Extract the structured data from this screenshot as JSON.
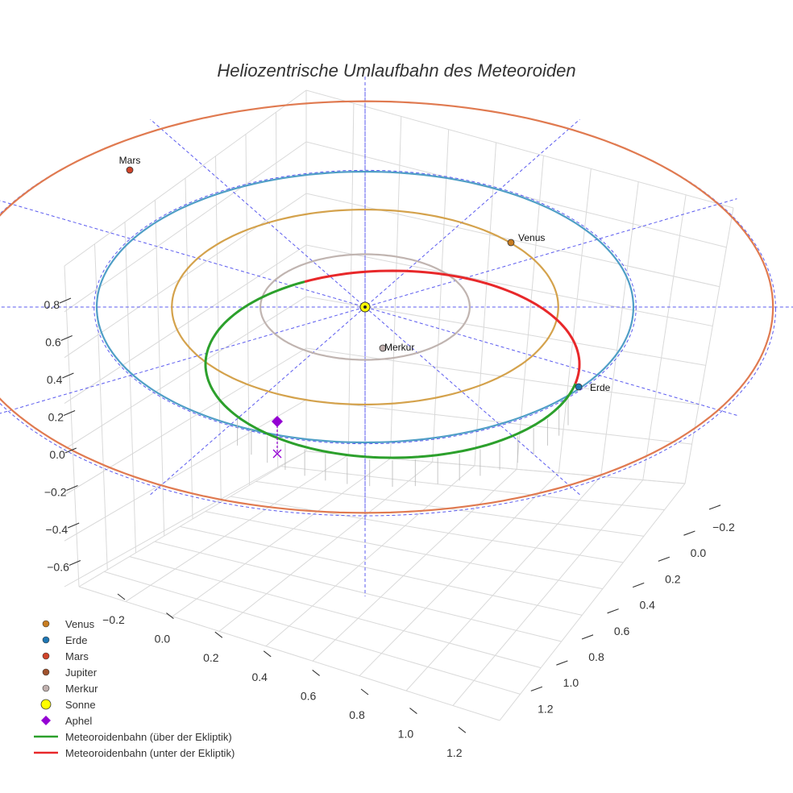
{
  "chart_data": {
    "type": "3d-orbit",
    "title": "Heliozentrische Umlaufbahn des Meteoroiden",
    "axes": {
      "x_ticks": [
        "−0.2",
        "0.0",
        "0.2",
        "0.4",
        "0.6",
        "0.8",
        "1.0",
        "1.2"
      ],
      "y_ticks": [
        "−0.2",
        "0.0",
        "0.2",
        "0.4",
        "0.6",
        "0.8",
        "1.0",
        "1.2"
      ],
      "z_ticks": [
        "0.8",
        "0.6",
        "0.4",
        "0.2",
        "0.0",
        "−0.2",
        "−0.4",
        "−0.6"
      ]
    },
    "orbits": [
      {
        "name": "Merkur",
        "radius_au": 0.39,
        "color": "#c0b4b0"
      },
      {
        "name": "Venus",
        "radius_au": 0.72,
        "color": "#d4a24c"
      },
      {
        "name": "Erde",
        "radius_au": 1.0,
        "color": "#4f9ec6"
      },
      {
        "name": "Mars",
        "radius_au": 1.52,
        "color": "#e07a50"
      }
    ],
    "planets": [
      {
        "name": "Venus",
        "label": "Venus",
        "color": "#c87d22"
      },
      {
        "name": "Erde",
        "label": "Erde",
        "color": "#1f77b4"
      },
      {
        "name": "Mars",
        "label": "Mars",
        "color": "#d0442a"
      },
      {
        "name": "Merkur",
        "label": "Merkur",
        "color": "#c0b0ae"
      }
    ],
    "sun": {
      "name": "Sonne",
      "color": "#ffff00"
    },
    "aphel": {
      "name": "Aphel",
      "color": "#9400d3"
    },
    "meteoroid": {
      "above_color": "#2ca02c",
      "below_color": "#e8282a"
    },
    "legend": [
      {
        "kind": "dot",
        "label": "Venus",
        "color": "#c87d22"
      },
      {
        "kind": "dot",
        "label": "Erde",
        "color": "#1f77b4"
      },
      {
        "kind": "dot",
        "label": "Mars",
        "color": "#d0442a"
      },
      {
        "kind": "dot",
        "label": "Jupiter",
        "color": "#a0522d"
      },
      {
        "kind": "dot",
        "label": "Merkur",
        "color": "#c0b0ae"
      },
      {
        "kind": "sun",
        "label": "Sonne",
        "color": "#ffff00"
      },
      {
        "kind": "diamond",
        "label": "Aphel",
        "color": "#9400d3"
      },
      {
        "kind": "line",
        "label": "Meteoroidenbahn (über der Ekliptik)",
        "color": "#2ca02c"
      },
      {
        "kind": "line",
        "label": "Meteoroidenbahn (unter der Ekliptik)",
        "color": "#e8282a"
      }
    ]
  }
}
